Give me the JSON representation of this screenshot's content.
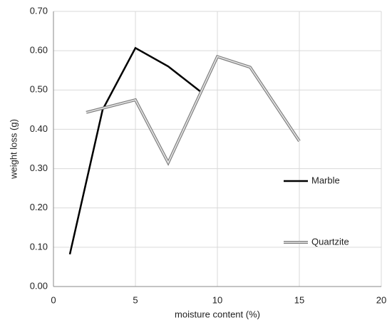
{
  "chart_data": {
    "type": "line",
    "x_label": "moisture content (%)",
    "y_label": "weight loss (g)",
    "xlim": [
      0,
      20
    ],
    "xticks": [
      0,
      5,
      10,
      15,
      20
    ],
    "ylim": [
      0,
      0.7
    ],
    "yticks": [
      {
        "value": 0,
        "label": "0.00"
      },
      {
        "value": 0.1,
        "label": "0.10"
      },
      {
        "value": 0.2,
        "label": "0.20"
      },
      {
        "value": 0.3,
        "label": "0.30"
      },
      {
        "value": 0.4,
        "label": "0.40"
      },
      {
        "value": 0.5,
        "label": "0.50"
      },
      {
        "value": 0.6,
        "label": "0.60"
      },
      {
        "value": 0.7,
        "label": "0.70"
      }
    ],
    "grid": true,
    "legend": "right",
    "series": [
      {
        "name": "Marble",
        "color": "#000000",
        "style": "single",
        "x": [
          1,
          3,
          5,
          7,
          9
        ],
        "values": [
          0.082,
          0.45,
          0.607,
          0.56,
          0.495
        ]
      },
      {
        "name": "Quartzite",
        "color": "#7f7f7f",
        "style": "double",
        "x": [
          2,
          5,
          7,
          9,
          10,
          12,
          15
        ],
        "values": [
          0.443,
          0.475,
          0.315,
          0.495,
          0.585,
          0.558,
          0.37
        ]
      }
    ]
  }
}
